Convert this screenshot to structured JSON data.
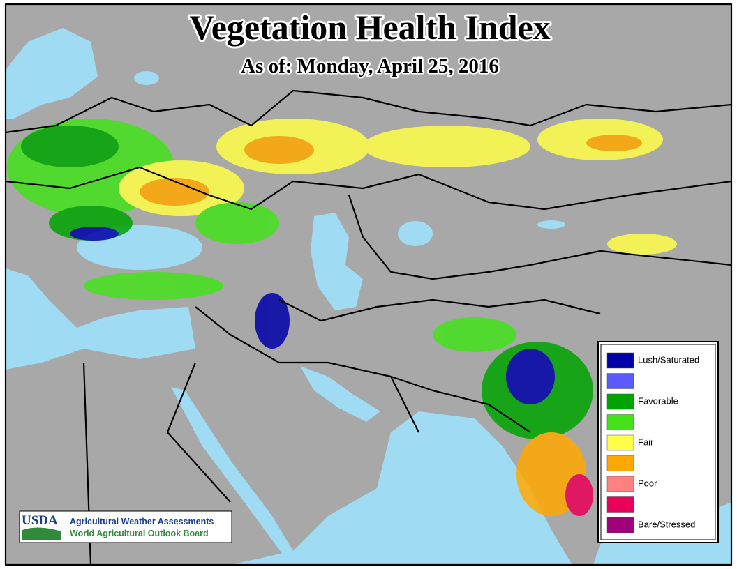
{
  "header": {
    "title": "Vegetation Health Index",
    "subtitle": "As of: Monday, April 25, 2016"
  },
  "legend": {
    "items": [
      {
        "label": "Lush/Saturated",
        "color": "#0000a8"
      },
      {
        "label": null,
        "color": "#5a5aff"
      },
      {
        "label": "Favorable",
        "color": "#00a400"
      },
      {
        "label": null,
        "color": "#44e21a"
      },
      {
        "label": "Fair",
        "color": "#ffff48"
      },
      {
        "label": null,
        "color": "#ffa800"
      },
      {
        "label": "Poor",
        "color": "#ff8080"
      },
      {
        "label": null,
        "color": "#ea0058"
      },
      {
        "label": "Bare/Stressed",
        "color": "#a0007c"
      }
    ]
  },
  "credit": {
    "logo": "USDA",
    "line1": "Agricultural Weather Assessments",
    "line2": "World Agricultural Outlook Board"
  }
}
